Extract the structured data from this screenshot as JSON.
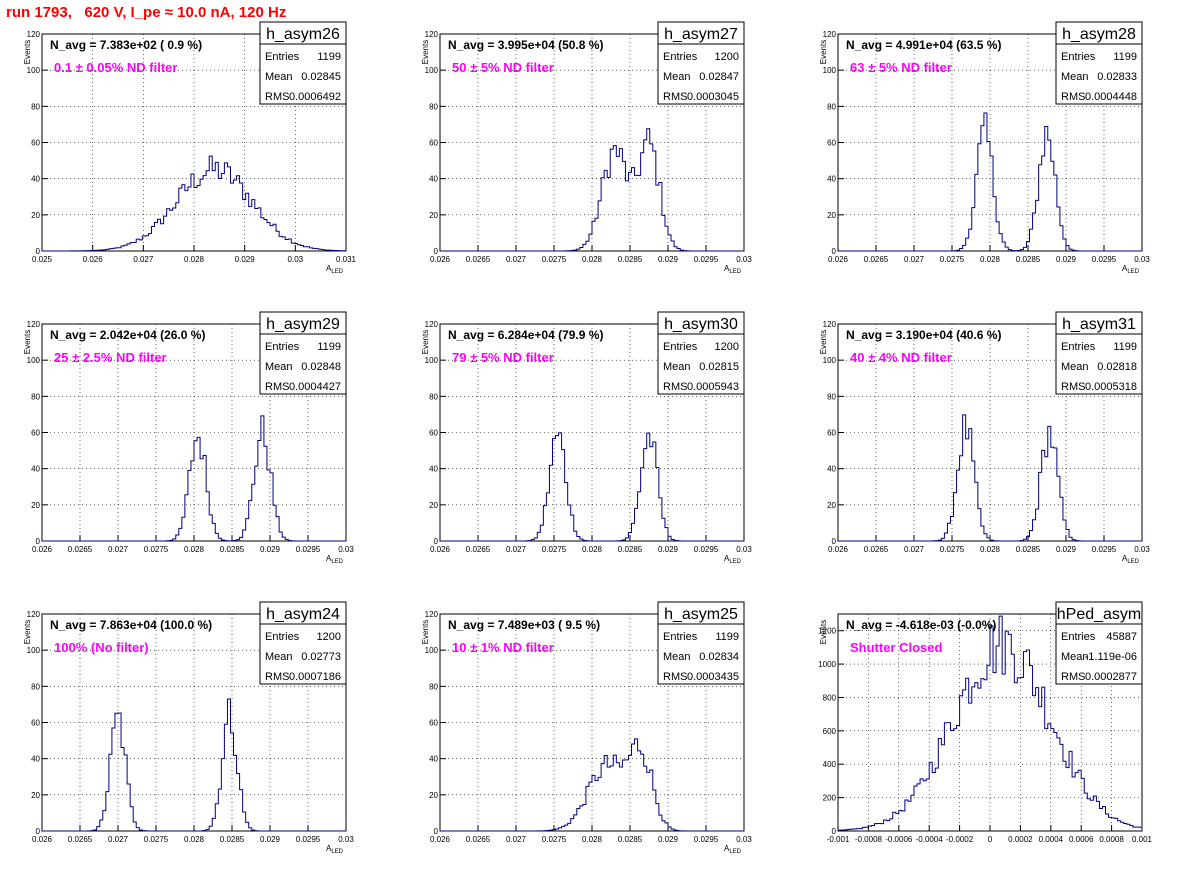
{
  "page": {
    "title": "run 1793,   620 V, I_pe ≈ 10.0 nA, 120 Hz"
  },
  "chart_data": [
    {
      "type": "histogram",
      "name": "h_asym26",
      "annotation": "N_avg = 7.383e+02 ( 0.9 %)",
      "filter_label": "0.1 ± 0.05% ND filter",
      "stats": {
        "Entries": "1199",
        "Mean": "0.02845",
        "RMS": "0.0006492"
      },
      "xlabel": "A_LED",
      "ylabel": "Events",
      "xlim": [
        0.025,
        0.031
      ],
      "ylim": [
        0,
        120
      ],
      "xticks": [
        {
          "v": 0.025,
          "l": "0.025"
        },
        {
          "v": 0.026,
          "l": "0.026"
        },
        {
          "v": 0.027,
          "l": "0.027"
        },
        {
          "v": 0.028,
          "l": "0.028"
        },
        {
          "v": 0.029,
          "l": "0.029"
        },
        {
          "v": 0.03,
          "l": "0.03"
        },
        {
          "v": 0.031,
          "l": "0.031"
        }
      ],
      "yticks": [
        0,
        20,
        40,
        60,
        80,
        100,
        120
      ],
      "peaks": [
        [
          0.0284,
          45,
          0.00075
        ]
      ],
      "color": "#000080",
      "grid": true
    },
    {
      "type": "histogram",
      "name": "h_asym27",
      "annotation": "N_avg = 3.995e+04 (50.8 %)",
      "filter_label": "50 ± 5% ND filter",
      "stats": {
        "Entries": "1200",
        "Mean": "0.02847",
        "RMS": "0.0003045"
      },
      "xlabel": "A_LED",
      "ylabel": "Events",
      "xlim": [
        0.026,
        0.03
      ],
      "ylim": [
        0,
        120
      ],
      "xticks": [
        {
          "v": 0.026,
          "l": "0.026"
        },
        {
          "v": 0.0265,
          "l": "0.0265"
        },
        {
          "v": 0.027,
          "l": "0.027"
        },
        {
          "v": 0.0275,
          "l": "0.0275"
        },
        {
          "v": 0.028,
          "l": "0.028"
        },
        {
          "v": 0.0285,
          "l": "0.0285"
        },
        {
          "v": 0.029,
          "l": "0.029"
        },
        {
          "v": 0.0295,
          "l": "0.0295"
        },
        {
          "v": 0.03,
          "l": "0.03"
        }
      ],
      "yticks": [
        0,
        20,
        40,
        60,
        80,
        100,
        120
      ],
      "peaks": [
        [
          0.0283,
          55,
          0.00017
        ],
        [
          0.02875,
          58,
          0.00014
        ]
      ],
      "color": "#000080",
      "grid": true
    },
    {
      "type": "histogram",
      "name": "h_asym28",
      "annotation": "N_avg = 4.991e+04 (63.5 %)",
      "filter_label": "63 ± 5% ND filter",
      "stats": {
        "Entries": "1199",
        "Mean": "0.02833",
        "RMS": "0.0004448"
      },
      "xlabel": "A_LED",
      "ylabel": "Events",
      "xlim": [
        0.026,
        0.03
      ],
      "ylim": [
        0,
        120
      ],
      "xticks": [
        {
          "v": 0.026,
          "l": "0.026"
        },
        {
          "v": 0.0265,
          "l": "0.0265"
        },
        {
          "v": 0.027,
          "l": "0.027"
        },
        {
          "v": 0.0275,
          "l": "0.0275"
        },
        {
          "v": 0.028,
          "l": "0.028"
        },
        {
          "v": 0.0285,
          "l": "0.0285"
        },
        {
          "v": 0.029,
          "l": "0.029"
        },
        {
          "v": 0.0295,
          "l": "0.0295"
        },
        {
          "v": 0.03,
          "l": "0.03"
        }
      ],
      "yticks": [
        0,
        20,
        40,
        60,
        80,
        100,
        120
      ],
      "peaks": [
        [
          0.02793,
          65,
          0.00011
        ],
        [
          0.02875,
          65,
          0.00011
        ]
      ],
      "color": "#000080",
      "grid": true
    },
    {
      "type": "histogram",
      "name": "h_asym29",
      "annotation": "N_avg = 2.042e+04 (26.0 %)",
      "filter_label": "25 ± 2.5% ND filter",
      "stats": {
        "Entries": "1199",
        "Mean": "0.02848",
        "RMS": "0.0004427"
      },
      "xlabel": "A_LED",
      "ylabel": "Events",
      "xlim": [
        0.026,
        0.03
      ],
      "ylim": [
        0,
        120
      ],
      "xticks": [
        {
          "v": 0.026,
          "l": "0.026"
        },
        {
          "v": 0.0265,
          "l": "0.0265"
        },
        {
          "v": 0.027,
          "l": "0.027"
        },
        {
          "v": 0.0275,
          "l": "0.0275"
        },
        {
          "v": 0.028,
          "l": "0.028"
        },
        {
          "v": 0.0285,
          "l": "0.0285"
        },
        {
          "v": 0.029,
          "l": "0.029"
        },
        {
          "v": 0.0295,
          "l": "0.0295"
        },
        {
          "v": 0.03,
          "l": "0.03"
        }
      ],
      "yticks": [
        0,
        20,
        40,
        60,
        80,
        100,
        120
      ],
      "peaks": [
        [
          0.02805,
          58,
          0.00011
        ],
        [
          0.0289,
          60,
          0.00011
        ]
      ],
      "color": "#000080",
      "grid": true
    },
    {
      "type": "histogram",
      "name": "h_asym30",
      "annotation": "N_avg = 6.284e+04 (79.9 %)",
      "filter_label": "79 ± 5% ND filter",
      "stats": {
        "Entries": "1200",
        "Mean": "0.02815",
        "RMS": "0.0005943"
      },
      "xlabel": "A_LED",
      "ylabel": "Events",
      "xlim": [
        0.026,
        0.03
      ],
      "ylim": [
        0,
        120
      ],
      "xticks": [
        {
          "v": 0.026,
          "l": "0.026"
        },
        {
          "v": 0.0265,
          "l": "0.0265"
        },
        {
          "v": 0.027,
          "l": "0.027"
        },
        {
          "v": 0.0275,
          "l": "0.0275"
        },
        {
          "v": 0.028,
          "l": "0.028"
        },
        {
          "v": 0.0285,
          "l": "0.0285"
        },
        {
          "v": 0.029,
          "l": "0.029"
        },
        {
          "v": 0.0295,
          "l": "0.0295"
        },
        {
          "v": 0.03,
          "l": "0.03"
        }
      ],
      "yticks": [
        0,
        20,
        40,
        60,
        80,
        100,
        120
      ],
      "peaks": [
        [
          0.02755,
          58,
          0.00011
        ],
        [
          0.02875,
          58,
          0.00011
        ]
      ],
      "color": "#000080",
      "grid": true
    },
    {
      "type": "histogram",
      "name": "h_asym31",
      "annotation": "N_avg = 3.190e+04 (40.6 %)",
      "filter_label": "40 ± 4% ND filter",
      "stats": {
        "Entries": "1199",
        "Mean": "0.02818",
        "RMS": "0.0005318"
      },
      "xlabel": "A_LED",
      "ylabel": "Events",
      "xlim": [
        0.026,
        0.03
      ],
      "ylim": [
        0,
        120
      ],
      "xticks": [
        {
          "v": 0.026,
          "l": "0.026"
        },
        {
          "v": 0.0265,
          "l": "0.0265"
        },
        {
          "v": 0.027,
          "l": "0.027"
        },
        {
          "v": 0.0275,
          "l": "0.0275"
        },
        {
          "v": 0.028,
          "l": "0.028"
        },
        {
          "v": 0.0285,
          "l": "0.0285"
        },
        {
          "v": 0.029,
          "l": "0.029"
        },
        {
          "v": 0.0295,
          "l": "0.0295"
        },
        {
          "v": 0.03,
          "l": "0.03"
        }
      ],
      "yticks": [
        0,
        20,
        40,
        60,
        80,
        100,
        120
      ],
      "peaks": [
        [
          0.02768,
          62,
          0.00011
        ],
        [
          0.02878,
          60,
          0.00011
        ]
      ],
      "color": "#000080",
      "grid": true
    },
    {
      "type": "histogram",
      "name": "h_asym24",
      "annotation": "N_avg = 7.863e+04 (100.0 %)",
      "filter_label": "100% (No filter)",
      "stats": {
        "Entries": "1200",
        "Mean": "0.02773",
        "RMS": "0.0007186"
      },
      "xlabel": "A_LED",
      "ylabel": "Events",
      "xlim": [
        0.026,
        0.03
      ],
      "ylim": [
        0,
        120
      ],
      "xticks": [
        {
          "v": 0.026,
          "l": "0.026"
        },
        {
          "v": 0.0265,
          "l": "0.0265"
        },
        {
          "v": 0.027,
          "l": "0.027"
        },
        {
          "v": 0.0275,
          "l": "0.0275"
        },
        {
          "v": 0.028,
          "l": "0.028"
        },
        {
          "v": 0.0285,
          "l": "0.0285"
        },
        {
          "v": 0.029,
          "l": "0.029"
        },
        {
          "v": 0.0295,
          "l": "0.0295"
        },
        {
          "v": 0.03,
          "l": "0.03"
        }
      ],
      "yticks": [
        0,
        20,
        40,
        60,
        80,
        100,
        120
      ],
      "peaks": [
        [
          0.027,
          62,
          0.0001
        ],
        [
          0.02847,
          64,
          0.0001
        ]
      ],
      "color": "#000080",
      "grid": true
    },
    {
      "type": "histogram",
      "name": "h_asym25",
      "annotation": "N_avg = 7.489e+03 ( 9.5 %)",
      "filter_label": "10 ± 1% ND filter",
      "stats": {
        "Entries": "1199",
        "Mean": "0.02834",
        "RMS": "0.0003435"
      },
      "xlabel": "A_LED",
      "ylabel": "Events",
      "xlim": [
        0.026,
        0.03
      ],
      "ylim": [
        0,
        120
      ],
      "xticks": [
        {
          "v": 0.026,
          "l": "0.026"
        },
        {
          "v": 0.0265,
          "l": "0.0265"
        },
        {
          "v": 0.027,
          "l": "0.027"
        },
        {
          "v": 0.0275,
          "l": "0.0275"
        },
        {
          "v": 0.028,
          "l": "0.028"
        },
        {
          "v": 0.0285,
          "l": "0.0285"
        },
        {
          "v": 0.029,
          "l": "0.029"
        },
        {
          "v": 0.0295,
          "l": "0.0295"
        },
        {
          "v": 0.03,
          "l": "0.03"
        }
      ],
      "yticks": [
        0,
        20,
        40,
        60,
        80,
        100,
        120
      ],
      "peaks": [
        [
          0.0282,
          36,
          0.00025
        ],
        [
          0.02865,
          40,
          0.00015
        ]
      ],
      "color": "#000080",
      "grid": true
    },
    {
      "type": "histogram",
      "name": "hPed_asym",
      "annotation": "N_avg = -4.618e-03 (-0.0%)",
      "filter_label": "Shutter Closed",
      "stats": {
        "Entries": "45887",
        "Mean": "-1.119e-06",
        "RMS": "0.0002877"
      },
      "xlabel": "A_LED",
      "ylabel": "Events",
      "xlim": [
        -0.001,
        0.001
      ],
      "ylim": [
        0,
        1300
      ],
      "xticks": [
        {
          "v": -0.001,
          "l": "-0.001"
        },
        {
          "v": -0.0008,
          "l": "-0.0008"
        },
        {
          "v": -0.0006,
          "l": "-0.0006"
        },
        {
          "v": -0.0004,
          "l": "-0.0004"
        },
        {
          "v": -0.0002,
          "l": "-0.0002"
        },
        {
          "v": 0,
          "l": "0"
        },
        {
          "v": 0.0002,
          "l": "0.0002"
        },
        {
          "v": 0.0004,
          "l": "0.0004"
        },
        {
          "v": 0.0006,
          "l": "0.0006"
        },
        {
          "v": 0.0008,
          "l": "0.0008"
        },
        {
          "v": 0.001,
          "l": "0.001"
        }
      ],
      "yticks": [
        0,
        200,
        400,
        600,
        800,
        1000,
        1200
      ],
      "peaks": [
        [
          8e-05,
          1120,
          0.00032
        ]
      ],
      "color": "#000080",
      "grid": true,
      "no_xlabel": true
    }
  ]
}
